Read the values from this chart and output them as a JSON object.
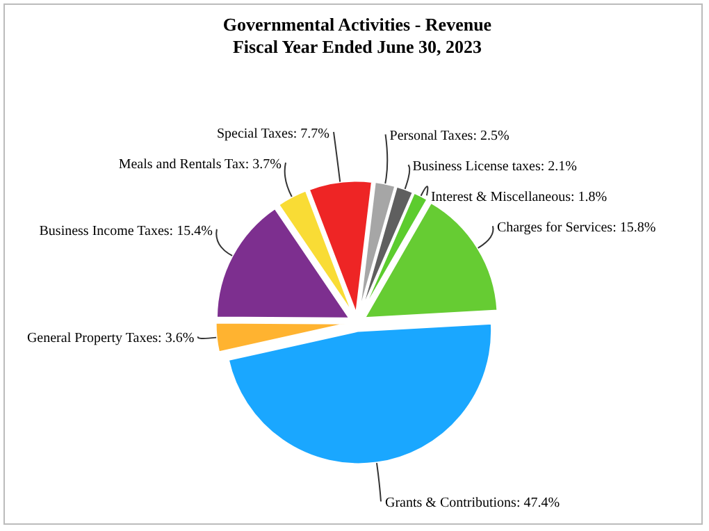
{
  "chart_data": {
    "type": "pie",
    "title": "Governmental Activities - Revenue",
    "subtitle": "Fiscal Year Ended June 30, 2023",
    "categories": [
      "Personal Taxes",
      "Business License taxes",
      "Interest & Miscellaneous",
      "Charges for Services",
      "Grants & Contributions",
      "General Property Taxes",
      "Business Income Taxes",
      "Meals and Rentals Tax",
      "Special Taxes"
    ],
    "values": [
      2.5,
      2.1,
      1.8,
      15.8,
      47.4,
      3.6,
      15.4,
      3.7,
      7.7
    ],
    "value_labels": [
      "2.5%",
      "2.1%",
      "1.8%",
      "15.8%",
      "47.4%",
      "3.6%",
      "15.4%",
      "3.7%",
      "7.7%"
    ],
    "colors": [
      "#a6a6a6",
      "#5f5f5f",
      "#5ccc2e",
      "#66cc33",
      "#1aa7ff",
      "#ffb330",
      "#7d2f8f",
      "#f9dc35",
      "#ee2525"
    ]
  }
}
